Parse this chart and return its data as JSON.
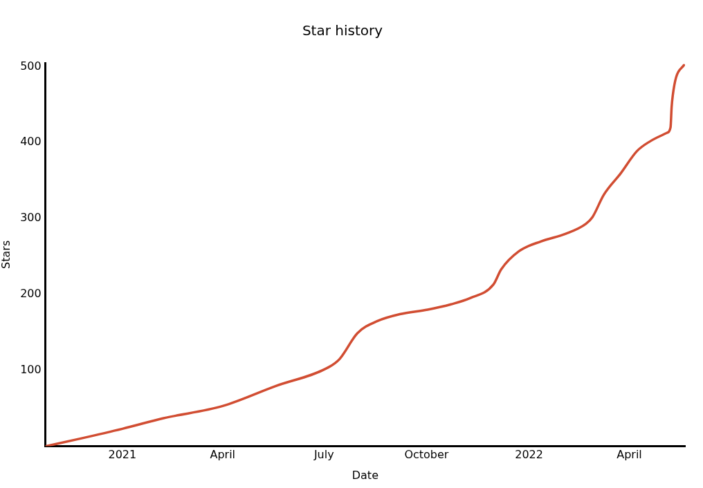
{
  "chart_data": {
    "type": "line",
    "title": "Star history",
    "xlabel": "Date",
    "ylabel": "Stars",
    "x": [
      "2020-10-24",
      "2020-11-24",
      "2021-01-01",
      "2021-02-07",
      "2021-04-01",
      "2021-05-18",
      "2021-07-05",
      "2021-07-15",
      "2021-07-31",
      "2021-08-18",
      "2021-09-07",
      "2021-10-02",
      "2021-10-23",
      "2021-11-09",
      "2021-11-30",
      "2021-12-07",
      "2021-12-23",
      "2022-01-12",
      "2022-02-03",
      "2022-02-21",
      "2022-02-27",
      "2022-03-09",
      "2022-03-24",
      "2022-04-08",
      "2022-04-20",
      "2022-05-05",
      "2022-05-08",
      "2022-05-09",
      "2022-05-10",
      "2022-05-13",
      "2022-05-20"
    ],
    "series": [
      {
        "color": "#d14d32",
        "values": [
          0,
          10,
          23,
          37,
          53,
          79,
          104,
          115,
          149,
          165,
          174,
          180,
          187,
          195,
          213,
          233,
          257,
          270,
          280,
          293,
          302,
          331,
          359,
          389,
          402,
          413,
          420,
          447,
          462,
          486,
          502
        ]
      }
    ],
    "xlim": [
      "2020-10-24",
      "2022-05-21"
    ],
    "xticks": [
      {
        "value": "2021-01-01",
        "label": "2021"
      },
      {
        "value": "2021-04-01",
        "label": "April"
      },
      {
        "value": "2021-07-01",
        "label": "July"
      },
      {
        "value": "2021-10-01",
        "label": "October"
      },
      {
        "value": "2022-01-01",
        "label": "2022"
      },
      {
        "value": "2022-04-01",
        "label": "April"
      }
    ],
    "ylim": [
      0,
      505
    ],
    "yticks": [
      100,
      200,
      300,
      400,
      500
    ],
    "grid": false,
    "legend": false,
    "marker": "none",
    "line_style": "solid"
  }
}
